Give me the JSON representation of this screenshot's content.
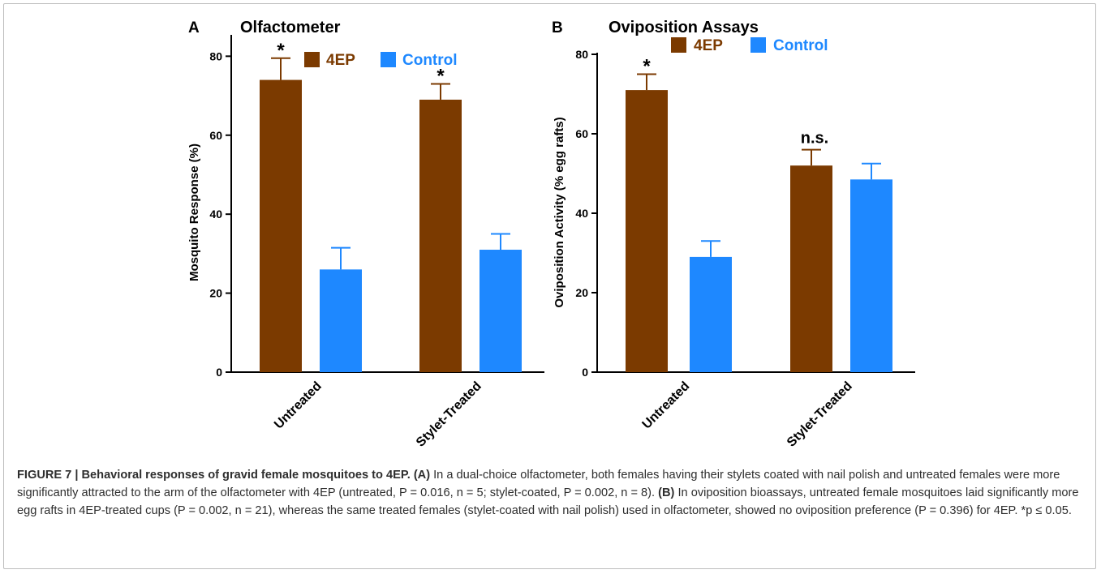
{
  "chart_data": [
    {
      "type": "bar",
      "panel_label": "A",
      "title": "Olfactometer",
      "ylabel": "Mosquito Response (%)",
      "ylim": [
        0,
        85
      ],
      "yticks": [
        0,
        20,
        40,
        60,
        80
      ],
      "categories": [
        "Untreated",
        "Stylet-Treated"
      ],
      "series": [
        {
          "name": "4EP",
          "color": "#7b3a00",
          "values": [
            74,
            69
          ],
          "errors": [
            5.5,
            4
          ]
        },
        {
          "name": "Control",
          "color": "#1e88ff",
          "values": [
            26,
            31
          ],
          "errors": [
            5.5,
            4
          ]
        }
      ],
      "annotations": [
        {
          "category": 0,
          "text": "*"
        },
        {
          "category": 1,
          "text": "*"
        }
      ],
      "legend": "top"
    },
    {
      "type": "bar",
      "panel_label": "B",
      "title": "Oviposition Assays",
      "ylabel": "Oviposition Activity (% egg rafts)",
      "ylim": [
        0,
        80
      ],
      "yticks": [
        0,
        20,
        40,
        60,
        80
      ],
      "categories": [
        "Untreated",
        "Stylet-Treated"
      ],
      "series": [
        {
          "name": "4EP",
          "color": "#7b3a00",
          "values": [
            71,
            52
          ],
          "errors": [
            4,
            4
          ]
        },
        {
          "name": "Control",
          "color": "#1e88ff",
          "values": [
            29,
            48.5
          ],
          "errors": [
            4,
            4
          ]
        }
      ],
      "annotations": [
        {
          "category": 0,
          "text": "*"
        },
        {
          "category": 1,
          "text": "n.s."
        }
      ],
      "legend": "top"
    }
  ],
  "caption": {
    "figure_label": "FIGURE 7 | Behavioral responses of gravid female mosquitoes to 4EP.",
    "part_a_label": "(A)",
    "part_a_text": " In a dual-choice olfactometer, both females having their stylets coated with nail polish and untreated females were more significantly attracted to the arm of the olfactometer with 4EP (untreated, P = 0.016, n = 5; stylet-coated, P = 0.002, n = 8). ",
    "part_b_label": "(B)",
    "part_b_text": " In oviposition bioassays, untreated female mosquitoes laid significantly more egg rafts in 4EP-treated cups (P = 0.002, n = 21), whereas the same treated females (stylet-coated with nail polish) used in olfactometer, showed no oviposition preference (P = 0.396) for 4EP. *p ≤ 0.05."
  }
}
